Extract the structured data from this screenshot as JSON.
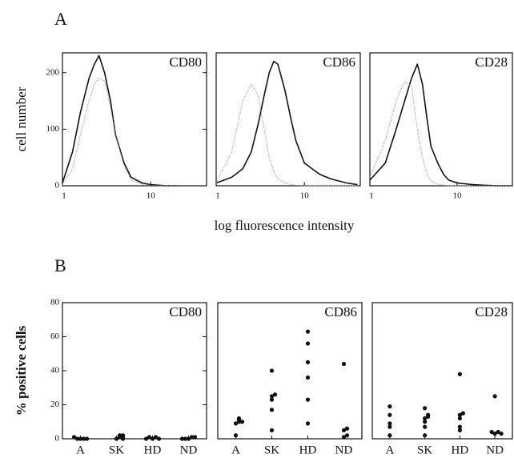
{
  "panels": [
    "A",
    "B"
  ],
  "chart_data": [
    {
      "type": "line",
      "title": "CD80",
      "ylabel": "cell number",
      "xscale": "log",
      "xlim": [
        1,
        43
      ],
      "xticks": [
        1,
        10
      ],
      "ylim": [
        0,
        235
      ],
      "yticks": [
        0,
        100,
        200
      ],
      "x": [
        1,
        1.3,
        1.6,
        2,
        2.3,
        2.6,
        3,
        3.5,
        4,
        5,
        6,
        8,
        10,
        15,
        20
      ],
      "series": [
        {
          "color": "#111111",
          "style": "solid",
          "values": [
            5,
            60,
            130,
            190,
            215,
            230,
            200,
            150,
            90,
            40,
            15,
            5,
            2,
            0,
            0
          ]
        },
        {
          "color": "#999999",
          "style": "dotted",
          "values": [
            2,
            30,
            90,
            150,
            180,
            190,
            185,
            140,
            90,
            35,
            10,
            3,
            1,
            0,
            0
          ]
        }
      ]
    },
    {
      "type": "line",
      "title": "CD86",
      "xlabel": "log fluorescence intensity",
      "xscale": "log",
      "xlim": [
        1,
        43
      ],
      "xticks": [
        1,
        10
      ],
      "ylim": [
        0,
        235
      ],
      "x": [
        1,
        1.5,
        2,
        2.5,
        3,
        3.5,
        4,
        4.5,
        5,
        6,
        7,
        8,
        10,
        15,
        20,
        30,
        40
      ],
      "series": [
        {
          "color": "#111111",
          "style": "solid",
          "values": [
            5,
            15,
            30,
            60,
            110,
            160,
            200,
            220,
            215,
            170,
            120,
            80,
            40,
            20,
            12,
            5,
            2
          ]
        },
        {
          "color": "#999999",
          "style": "dotted",
          "values": [
            5,
            60,
            150,
            180,
            160,
            100,
            50,
            25,
            12,
            5,
            2,
            1,
            0,
            0,
            0,
            0,
            0
          ]
        }
      ]
    },
    {
      "type": "line",
      "title": "CD28",
      "xscale": "log",
      "xlim": [
        1,
        43
      ],
      "xticks": [
        1,
        10
      ],
      "ylim": [
        0,
        235
      ],
      "x": [
        1,
        1.5,
        2,
        2.5,
        3,
        3.5,
        4,
        4.5,
        5,
        6,
        7,
        8,
        10,
        15,
        20,
        30,
        40
      ],
      "series": [
        {
          "color": "#111111",
          "style": "solid",
          "values": [
            10,
            40,
            100,
            150,
            190,
            215,
            180,
            120,
            70,
            40,
            20,
            10,
            5,
            2,
            1,
            0,
            0
          ]
        },
        {
          "color": "#999999",
          "style": "dotted",
          "values": [
            15,
            80,
            150,
            185,
            175,
            100,
            50,
            20,
            8,
            3,
            1,
            0,
            0,
            0,
            0,
            0,
            0
          ]
        }
      ]
    },
    {
      "type": "strip",
      "title": "CD80",
      "ylabel": "% positive cells",
      "color": "#111111",
      "categories": [
        "A",
        "SK",
        "HD",
        "ND"
      ],
      "ylim": [
        0,
        80
      ],
      "yticks": [
        0,
        20,
        40,
        60,
        80
      ],
      "values": [
        [
          0,
          0,
          0,
          0,
          1
        ],
        [
          0,
          1,
          2,
          1,
          0,
          2
        ],
        [
          0,
          1,
          1,
          0,
          0
        ],
        [
          0,
          1,
          0,
          1,
          0
        ]
      ]
    },
    {
      "type": "strip",
      "title": "CD86",
      "color": "#111111",
      "categories": [
        "A",
        "SK",
        "HD",
        "ND"
      ],
      "ylim": [
        0,
        80
      ],
      "values": [
        [
          2,
          9,
          10,
          11,
          12,
          10
        ],
        [
          5,
          17,
          23,
          25,
          26,
          40
        ],
        [
          9,
          23,
          36,
          45,
          56,
          63
        ],
        [
          1,
          2,
          5,
          6,
          44
        ]
      ]
    },
    {
      "type": "strip",
      "title": "CD28",
      "color": "#111111",
      "categories": [
        "A",
        "SK",
        "HD",
        "ND"
      ],
      "ylim": [
        0,
        80
      ],
      "values": [
        [
          2,
          7,
          9,
          14,
          19
        ],
        [
          2,
          7,
          10,
          12,
          13,
          14,
          18
        ],
        [
          5,
          7,
          12,
          14,
          15,
          38
        ],
        [
          3,
          4,
          4,
          25,
          3
        ]
      ]
    }
  ]
}
